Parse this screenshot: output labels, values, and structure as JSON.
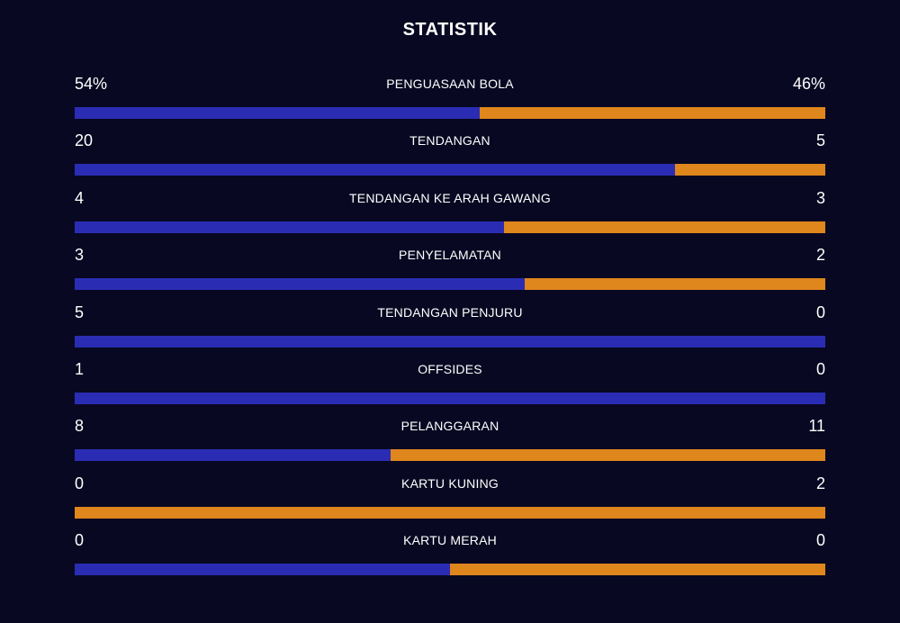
{
  "title": "STATISTIK",
  "colors": {
    "background": "#080822",
    "home": "#2a2db3",
    "away": "#df861c",
    "text": "#ffffff"
  },
  "stats": [
    {
      "label": "PENGUASAAN BOLA",
      "home": "54%",
      "away": "46%",
      "home_share": 0.54
    },
    {
      "label": "TENDANGAN",
      "home": "20",
      "away": "5",
      "home_share": 0.8
    },
    {
      "label": "TENDANGAN KE ARAH GAWANG",
      "home": "4",
      "away": "3",
      "home_share": 0.5714
    },
    {
      "label": "PENYELAMATAN",
      "home": "3",
      "away": "2",
      "home_share": 0.6
    },
    {
      "label": "TENDANGAN PENJURU",
      "home": "5",
      "away": "0",
      "home_share": 1.0
    },
    {
      "label": "OFFSIDES",
      "home": "1",
      "away": "0",
      "home_share": 1.0
    },
    {
      "label": "PELANGGARAN",
      "home": "8",
      "away": "11",
      "home_share": 0.4211
    },
    {
      "label": "KARTU KUNING",
      "home": "0",
      "away": "2",
      "home_share": 0.0
    },
    {
      "label": "KARTU MERAH",
      "home": "0",
      "away": "0",
      "home_share": 0.5
    }
  ]
}
